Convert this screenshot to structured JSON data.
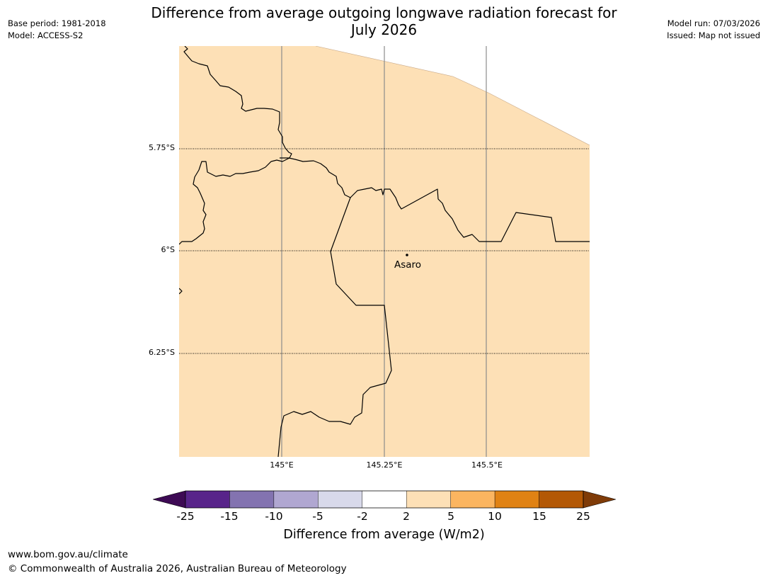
{
  "header": {
    "title_line1": "Difference from average outgoing longwave radiation forecast for",
    "title_line2": "July 2026",
    "base_period": "Base period: 1981-2018",
    "model": "Model: ACCESS-S2",
    "model_run": "Model run: 07/03/2026",
    "issued": "Issued: Map not issued"
  },
  "map": {
    "fill_color": "#fde0b6",
    "lat_labels": [
      "5.75°S",
      "6°S",
      "6.25°S"
    ],
    "lon_labels": [
      "145°E",
      "145.25°E",
      "145.5°E"
    ],
    "place": {
      "name": "Asaro"
    }
  },
  "colorbar": {
    "title": "Difference from average (W/m2)",
    "ticks": [
      "-25",
      "-15",
      "-10",
      "-5",
      "-2",
      "2",
      "5",
      "10",
      "15",
      "25"
    ],
    "colors": {
      "under": "#3d0a54",
      "bins": [
        "#58248a",
        "#8373b0",
        "#b0a7d1",
        "#d8d9ea",
        "#ffffff",
        "#fde0b6",
        "#fbb560",
        "#e08214",
        "#b35806"
      ],
      "over": "#7f3b08"
    }
  },
  "footer": {
    "url": "www.bom.gov.au/climate",
    "copyright": "© Commonwealth of Australia 2026, Australian Bureau of Meteorology"
  }
}
